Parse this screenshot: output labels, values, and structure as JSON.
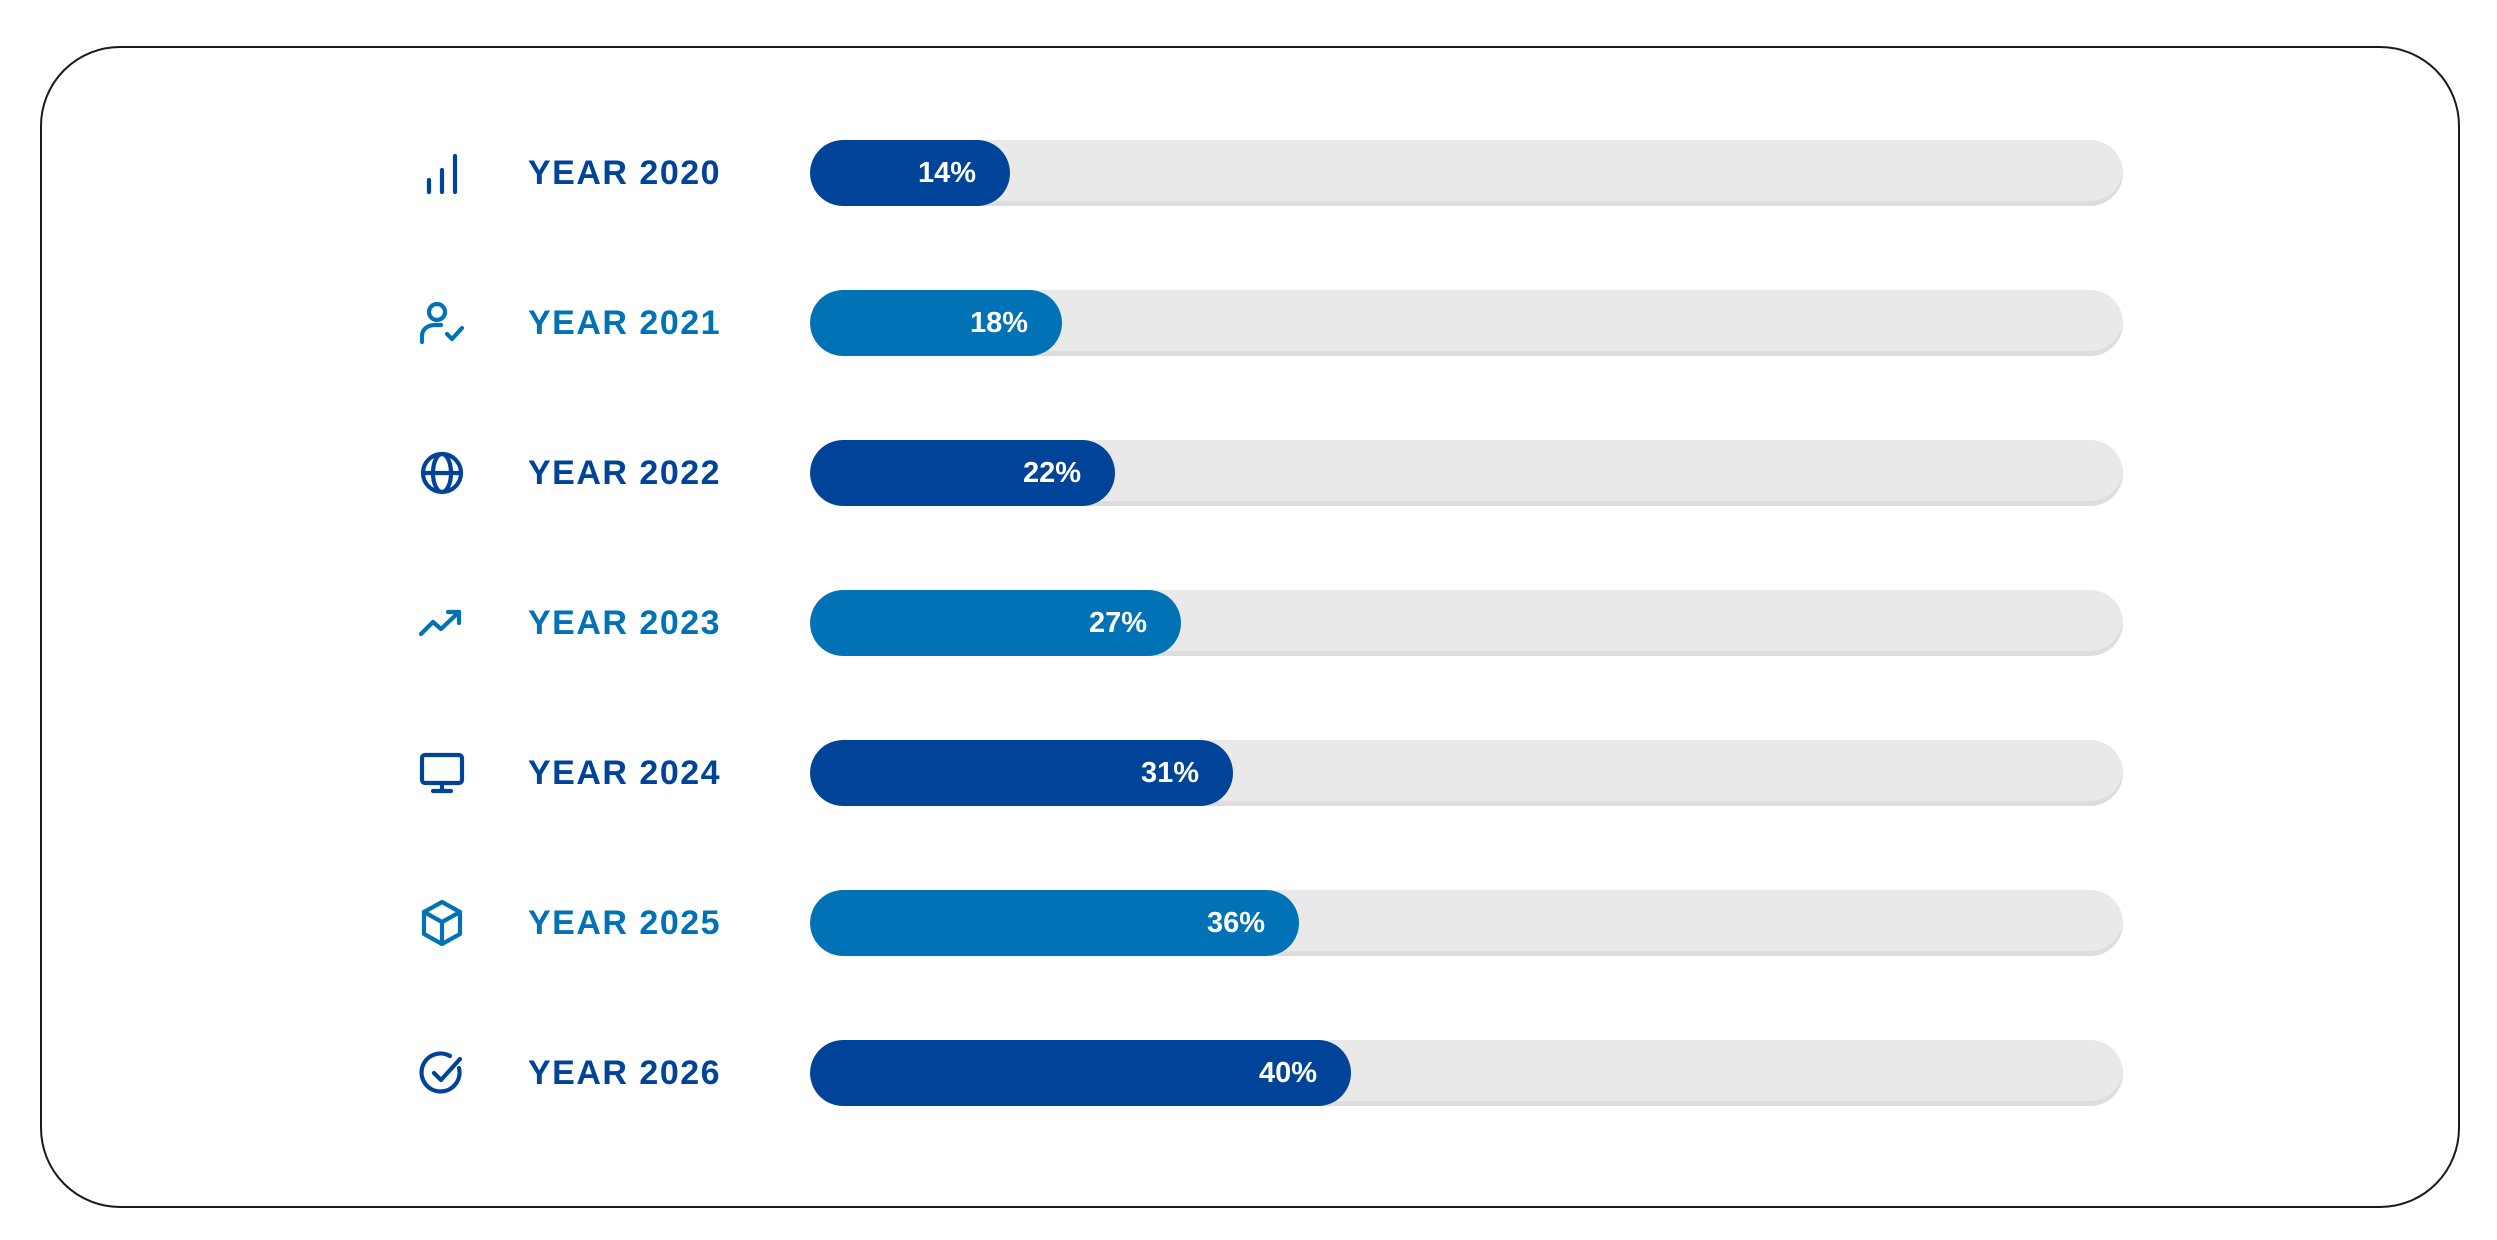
{
  "chart_data": {
    "type": "bar",
    "orientation": "horizontal",
    "categories": [
      "YEAR 2020",
      "YEAR 2021",
      "YEAR 2022",
      "YEAR 2023",
      "YEAR 2024",
      "YEAR 2025",
      "YEAR 2026"
    ],
    "values": [
      14,
      18,
      22,
      27,
      31,
      36,
      40
    ],
    "value_labels": [
      "14%",
      "18%",
      "22%",
      "27%",
      "31%",
      "36%",
      "40%"
    ],
    "xlim": [
      0,
      100
    ],
    "unit": "%",
    "title": "",
    "xlabel": "",
    "ylabel": "",
    "grid": false,
    "legend": "none"
  },
  "rows": [
    {
      "icon": "bar-chart-icon",
      "color": "#00449a"
    },
    {
      "icon": "user-check-icon",
      "color": "#0072b5"
    },
    {
      "icon": "globe-icon",
      "color": "#00449a"
    },
    {
      "icon": "trending-up-icon",
      "color": "#0072b5"
    },
    {
      "icon": "monitor-icon",
      "color": "#00449a"
    },
    {
      "icon": "box-icon",
      "color": "#0072b5"
    },
    {
      "icon": "check-circle-icon",
      "color": "#00449a"
    }
  ],
  "colors": {
    "dark_blue": "#00449a",
    "light_blue": "#0072b5",
    "track": "#e9e9e9",
    "fill_text": "#ffffff"
  }
}
